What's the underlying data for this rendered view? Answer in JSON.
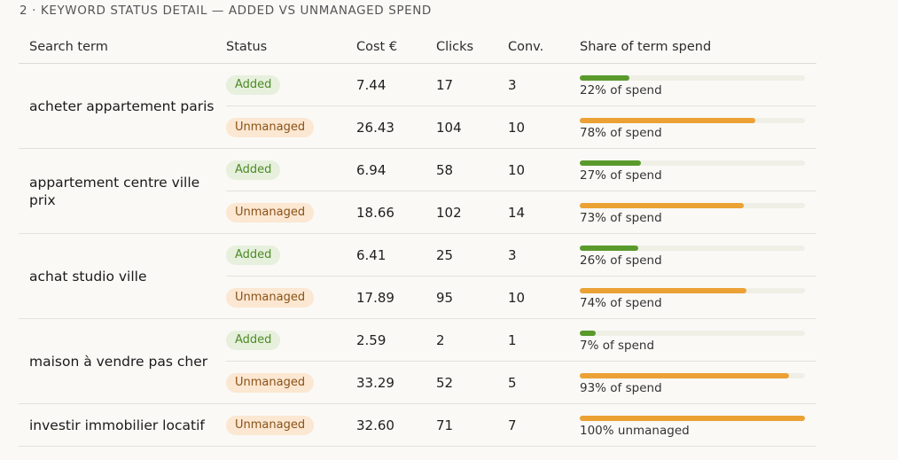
{
  "section": {
    "title": "2 · KEYWORD STATUS DETAIL — ADDED VS UNMANAGED SPEND"
  },
  "table": {
    "headers": {
      "term": "Search term",
      "status": "Status",
      "cost": "Cost €",
      "clicks": "Clicks",
      "conv": "Conv.",
      "share": "Share of term spend"
    },
    "colors": {
      "added_fill": "#5a9a2d",
      "unmanaged_fill": "#eba134",
      "track": "#efefe6"
    },
    "terms": [
      {
        "term": "acheter appartement paris",
        "rows": [
          {
            "status": "Added",
            "type": "added",
            "cost": "7.44",
            "clicks": "17",
            "conv": "3",
            "share": 0.22,
            "share_label": "22% of spend"
          },
          {
            "status": "Unmanaged",
            "type": "unmanaged",
            "cost": "26.43",
            "clicks": "104",
            "conv": "10",
            "share": 0.78,
            "share_label": "78% of spend"
          }
        ]
      },
      {
        "term": "appartement centre ville prix",
        "rows": [
          {
            "status": "Added",
            "type": "added",
            "cost": "6.94",
            "clicks": "58",
            "conv": "10",
            "share": 0.27,
            "share_label": "27% of spend"
          },
          {
            "status": "Unmanaged",
            "type": "unmanaged",
            "cost": "18.66",
            "clicks": "102",
            "conv": "14",
            "share": 0.73,
            "share_label": "73% of spend"
          }
        ]
      },
      {
        "term": "achat studio ville",
        "rows": [
          {
            "status": "Added",
            "type": "added",
            "cost": "6.41",
            "clicks": "25",
            "conv": "3",
            "share": 0.26,
            "share_label": "26% of spend"
          },
          {
            "status": "Unmanaged",
            "type": "unmanaged",
            "cost": "17.89",
            "clicks": "95",
            "conv": "10",
            "share": 0.74,
            "share_label": "74% of spend"
          }
        ]
      },
      {
        "term": "maison à vendre pas cher",
        "rows": [
          {
            "status": "Added",
            "type": "added",
            "cost": "2.59",
            "clicks": "2",
            "conv": "1",
            "share": 0.07,
            "share_label": "7% of spend"
          },
          {
            "status": "Unmanaged",
            "type": "unmanaged",
            "cost": "33.29",
            "clicks": "52",
            "conv": "5",
            "share": 0.93,
            "share_label": "93% of spend"
          }
        ]
      },
      {
        "term": "investir immobilier locatif",
        "rows": [
          {
            "status": "Unmanaged",
            "type": "unmanaged",
            "cost": "32.60",
            "clicks": "71",
            "conv": "7",
            "share": 1.0,
            "share_label": "100% unmanaged"
          }
        ]
      }
    ]
  }
}
